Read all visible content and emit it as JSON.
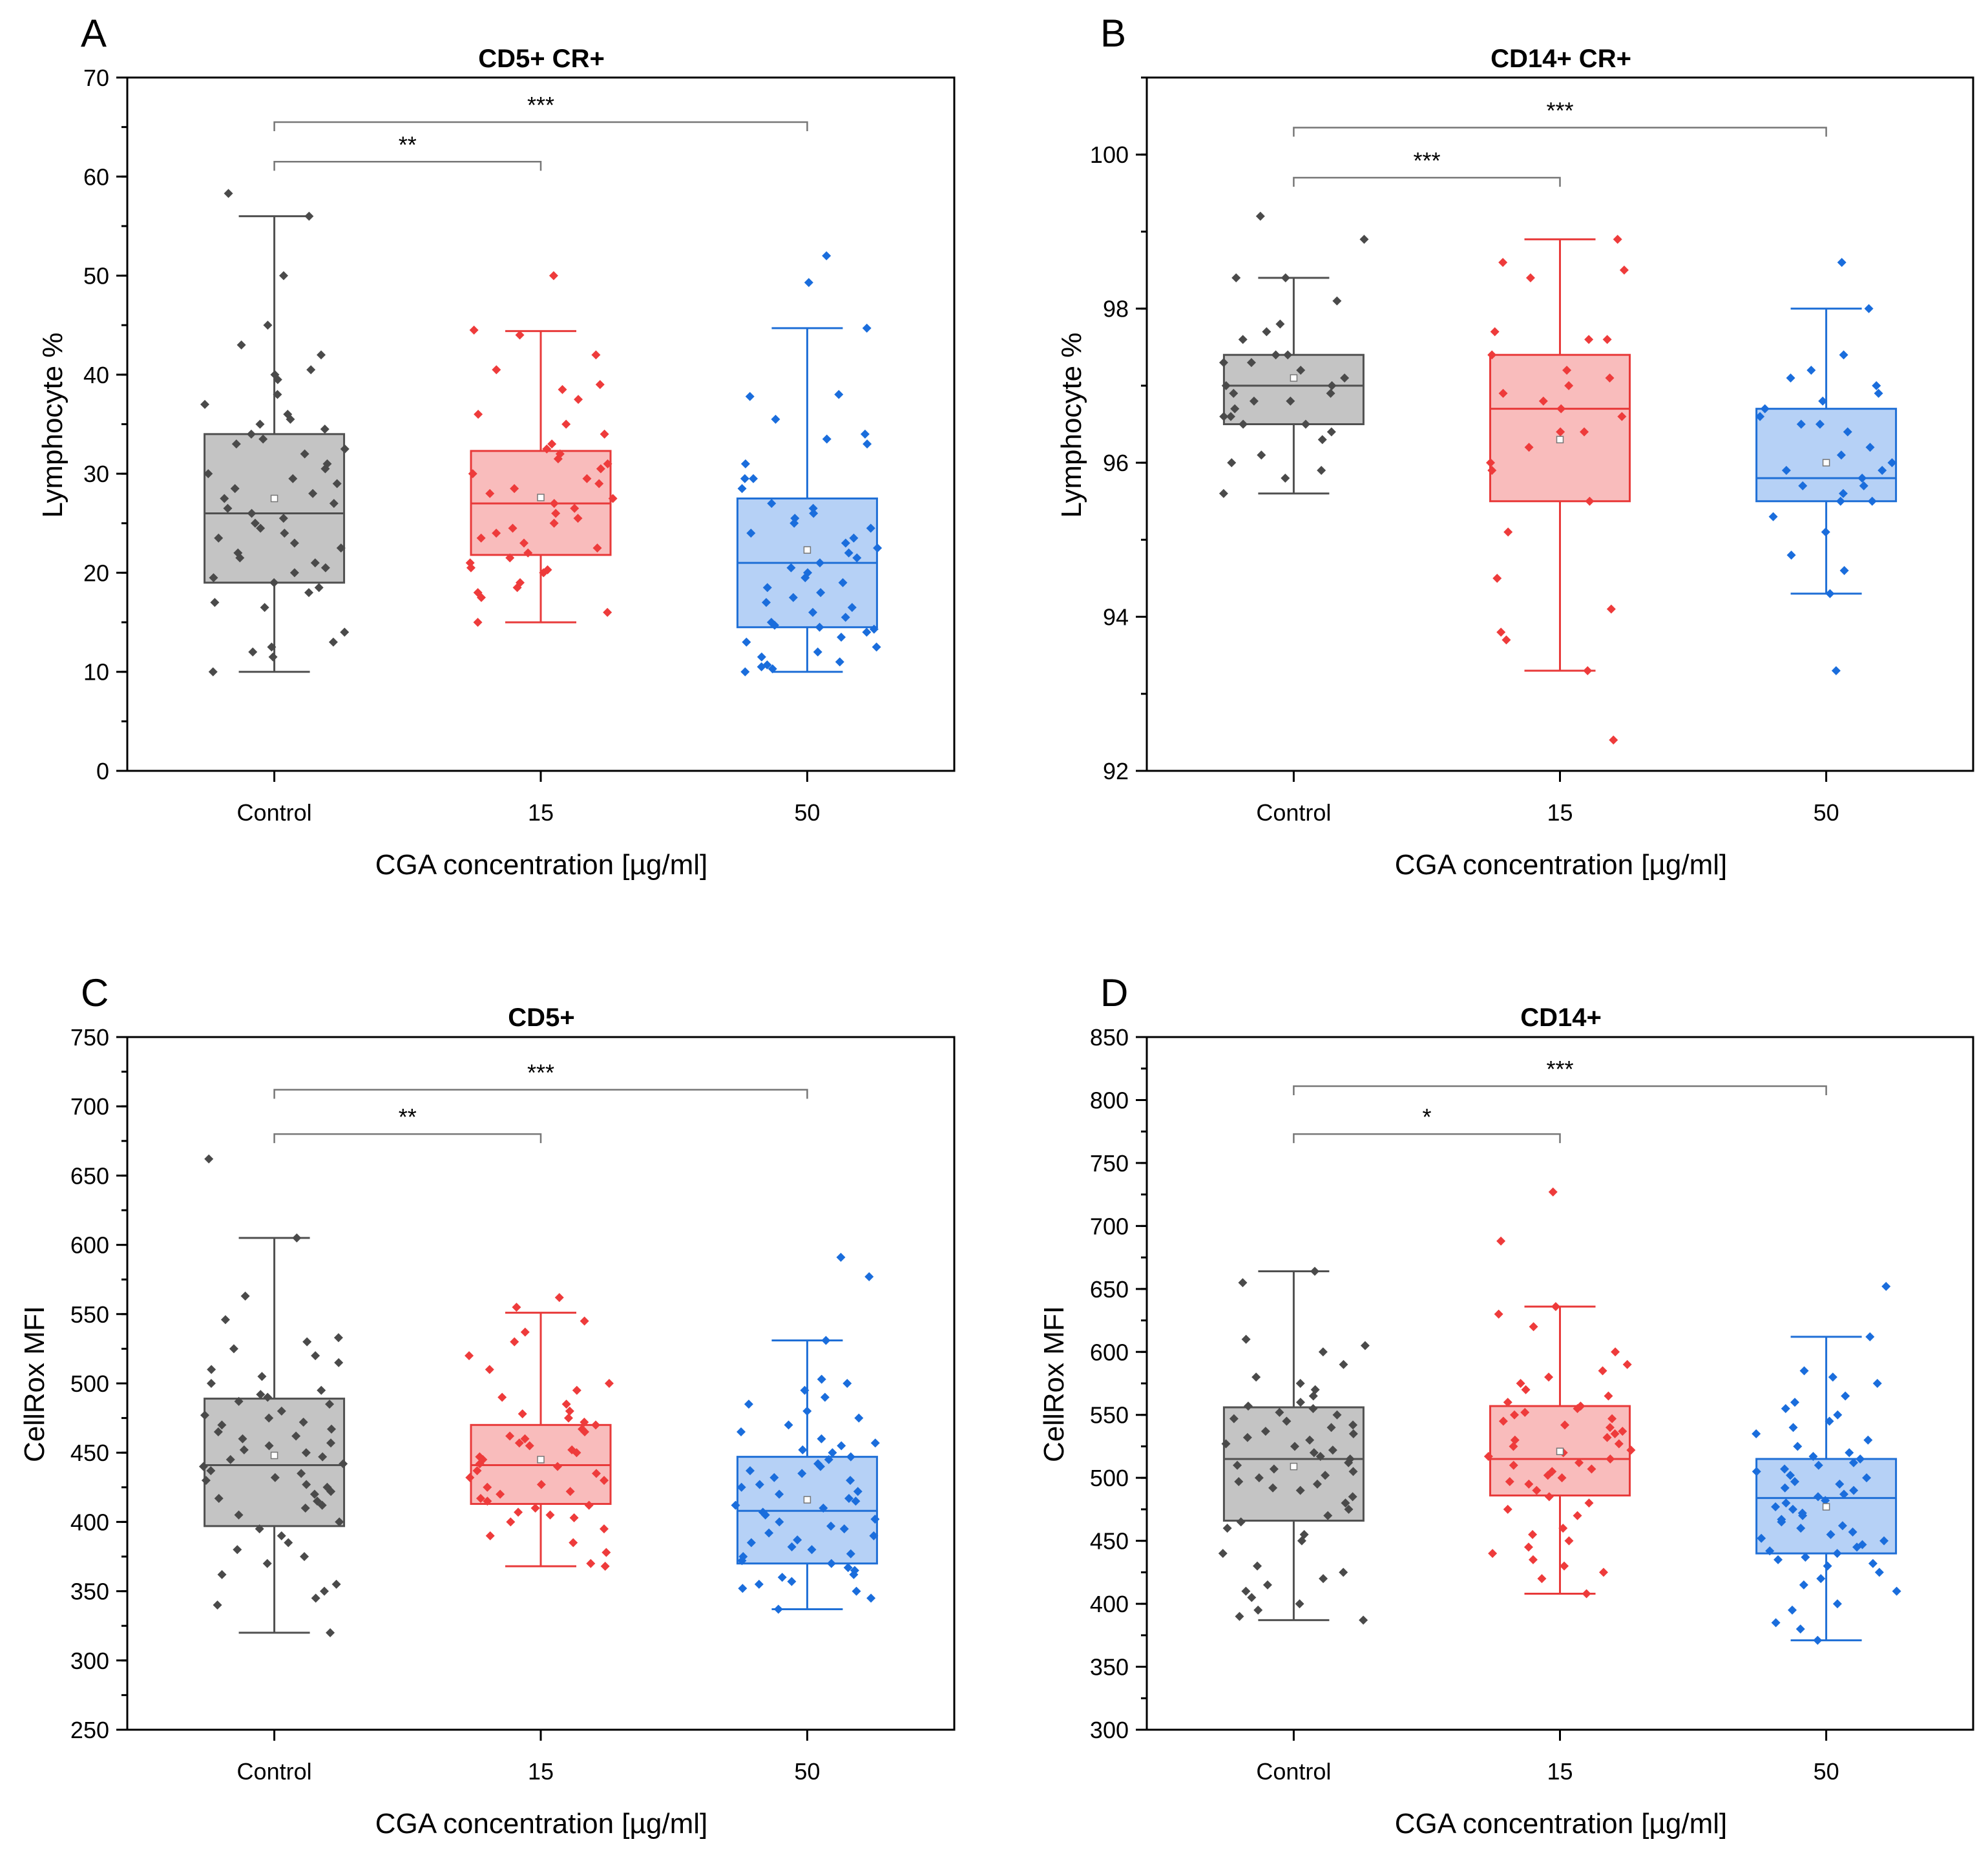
{
  "chart_data": [
    {
      "type": "box",
      "panel_letter": "A",
      "title": "CD5+ CR+",
      "xlabel": "CGA concentration [µg/ml]",
      "ylabel": "Lymphocyte %",
      "categories": [
        "Control",
        "15",
        "50"
      ],
      "ylim": [
        0,
        70
      ],
      "yticks": [
        0,
        10,
        20,
        30,
        40,
        50,
        60,
        70
      ],
      "yminor_step": 5,
      "colors": {
        "Control": {
          "fill": "#c4c4c4",
          "edge": "#505050",
          "point": "#4a4a4a"
        },
        "15": {
          "fill": "#f9bcbc",
          "edge": "#e83a3a",
          "point": "#ee3b3b"
        },
        "50": {
          "fill": "#b6d1f6",
          "edge": "#1f6fd6",
          "point": "#1a6ddc"
        }
      },
      "boxes": [
        {
          "q1": 19,
          "median": 26,
          "q3": 34,
          "whisker_low": 10,
          "whisker_high": 56,
          "mean": 27.5,
          "points": [
            58.3,
            56,
            50,
            45,
            43,
            42,
            40.5,
            40,
            39.5,
            38,
            37,
            36,
            35.5,
            35,
            34.5,
            34,
            33.5,
            33,
            32.5,
            32,
            31,
            30.5,
            30,
            29.5,
            29,
            28.5,
            28,
            27.5,
            27,
            26.5,
            26,
            25.5,
            25,
            24.5,
            24,
            23.5,
            23,
            22.5,
            22,
            21.5,
            21,
            20.5,
            20,
            19.5,
            19,
            18.5,
            18,
            17,
            16.5,
            14,
            13,
            12.5,
            12,
            11.5,
            10
          ]
        },
        {
          "q1": 21.8,
          "median": 27,
          "q3": 32.3,
          "whisker_low": 15,
          "whisker_high": 44.4,
          "mean": 27.6,
          "points": [
            50,
            44.5,
            44,
            42,
            40.5,
            39,
            38.5,
            37.5,
            36,
            35,
            34,
            33,
            32.5,
            32,
            31.5,
            31,
            30.5,
            30,
            29.5,
            29,
            28.5,
            28,
            27.5,
            27,
            26.5,
            26,
            25.5,
            25,
            24.5,
            24,
            23.5,
            23,
            22.5,
            22,
            21.5,
            21,
            20.5,
            20.3,
            20,
            19,
            18.5,
            18,
            17.5,
            16,
            15
          ]
        },
        {
          "q1": 14.5,
          "median": 21,
          "q3": 27.5,
          "whisker_low": 10,
          "whisker_high": 44.7,
          "mean": 22.3,
          "points": [
            52,
            49.3,
            44.7,
            38,
            37.8,
            35.5,
            34,
            33.5,
            33,
            31,
            29.5,
            29.5,
            28.5,
            27,
            26.5,
            26,
            25.5,
            25,
            24.5,
            24,
            23.5,
            23,
            22.5,
            22,
            21.5,
            21,
            20.5,
            20,
            19.5,
            19,
            18.5,
            18,
            17.5,
            17,
            16.5,
            16,
            15.5,
            15,
            14.7,
            14.5,
            14.3,
            14,
            13.5,
            13,
            12.5,
            12,
            11.5,
            11,
            10.7,
            10.5,
            10.3,
            10
          ]
        }
      ],
      "significance": [
        {
          "from": "Control",
          "to": "15",
          "label": "**",
          "y": 61.5
        },
        {
          "from": "Control",
          "to": "50",
          "label": "***",
          "y": 65.5
        }
      ]
    },
    {
      "type": "box",
      "panel_letter": "B",
      "title": "CD14+ CR+",
      "xlabel": "CGA concentration [µg/ml]",
      "ylabel": "Lymphocyte %",
      "categories": [
        "Control",
        "15",
        "50"
      ],
      "ylim": [
        92,
        101
      ],
      "yticks": [
        92,
        94,
        96,
        98,
        100
      ],
      "yminor_step": 1,
      "colors": {
        "Control": {
          "fill": "#c4c4c4",
          "edge": "#505050",
          "point": "#4a4a4a"
        },
        "15": {
          "fill": "#f9bcbc",
          "edge": "#e83a3a",
          "point": "#ee3b3b"
        },
        "50": {
          "fill": "#b6d1f6",
          "edge": "#1f6fd6",
          "point": "#1a6ddc"
        }
      },
      "boxes": [
        {
          "q1": 96.5,
          "median": 97,
          "q3": 97.4,
          "whisker_low": 95.6,
          "whisker_high": 98.4,
          "mean": 97.1,
          "points": [
            99.2,
            98.9,
            98.4,
            98.4,
            98.1,
            97.8,
            97.7,
            97.6,
            97.4,
            97.4,
            97.3,
            97.3,
            97.2,
            97.1,
            97,
            97,
            96.9,
            96.9,
            96.8,
            96.8,
            96.7,
            96.6,
            96.6,
            96.5,
            96.5,
            96.4,
            96.3,
            96.1,
            96,
            95.9,
            95.8,
            95.6
          ]
        },
        {
          "q1": 95.5,
          "median": 96.7,
          "q3": 97.4,
          "whisker_low": 93.3,
          "whisker_high": 98.9,
          "mean": 96.3,
          "points": [
            98.9,
            98.6,
            98.5,
            98.4,
            97.7,
            97.6,
            97.6,
            97.4,
            97.2,
            97.1,
            97,
            96.9,
            96.8,
            96.7,
            96.6,
            96.4,
            96.4,
            96.2,
            96,
            95.9,
            95.5,
            95.1,
            94.5,
            94.1,
            93.8,
            93.7,
            93.3,
            92.4
          ]
        },
        {
          "q1": 95.5,
          "median": 95.8,
          "q3": 96.7,
          "whisker_low": 94.3,
          "whisker_high": 98,
          "mean": 96,
          "points": [
            98.6,
            98,
            97.4,
            97.2,
            97.1,
            97,
            96.9,
            96.8,
            96.7,
            96.6,
            96.5,
            96.5,
            96.4,
            96.2,
            96.1,
            96,
            95.9,
            95.9,
            95.8,
            95.7,
            95.7,
            95.6,
            95.5,
            95.5,
            95.3,
            95.1,
            94.8,
            94.6,
            94.3,
            93.3
          ]
        }
      ],
      "significance": [
        {
          "from": "Control",
          "to": "15",
          "label": "***",
          "y": 99.7
        },
        {
          "from": "Control",
          "to": "50",
          "label": "***",
          "y": 100.35
        }
      ]
    },
    {
      "type": "box",
      "panel_letter": "C",
      "title": "CD5+",
      "xlabel": "CGA concentration [µg/ml]",
      "ylabel": "CellRox MFI",
      "categories": [
        "Control",
        "15",
        "50"
      ],
      "ylim": [
        250,
        750
      ],
      "yticks": [
        250,
        300,
        350,
        400,
        450,
        500,
        550,
        600,
        650,
        700,
        750
      ],
      "yminor_step": 25,
      "colors": {
        "Control": {
          "fill": "#c4c4c4",
          "edge": "#505050",
          "point": "#4a4a4a"
        },
        "15": {
          "fill": "#f9bcbc",
          "edge": "#e83a3a",
          "point": "#ee3b3b"
        },
        "50": {
          "fill": "#b6d1f6",
          "edge": "#1f6fd6",
          "point": "#1a6ddc"
        }
      },
      "boxes": [
        {
          "q1": 397,
          "median": 441,
          "q3": 489,
          "whisker_low": 320,
          "whisker_high": 605,
          "mean": 448,
          "points": [
            662,
            605,
            563,
            546,
            533,
            530,
            525,
            520,
            515,
            510,
            505,
            500,
            495,
            492,
            490,
            487,
            485,
            480,
            477,
            475,
            472,
            470,
            467,
            465,
            462,
            460,
            457,
            455,
            452,
            450,
            447,
            445,
            442,
            440,
            437,
            435,
            432,
            430,
            427,
            425,
            422,
            420,
            417,
            415,
            412,
            410,
            405,
            400,
            395,
            390,
            385,
            380,
            375,
            370,
            362,
            355,
            350,
            345,
            340,
            320
          ]
        },
        {
          "q1": 413,
          "median": 441,
          "q3": 470,
          "whisker_low": 368,
          "whisker_high": 551,
          "mean": 445,
          "points": [
            562,
            555,
            545,
            537,
            530,
            520,
            510,
            500,
            495,
            490,
            485,
            480,
            478,
            475,
            472,
            470,
            467,
            465,
            462,
            460,
            457,
            455,
            452,
            450,
            447,
            445,
            442,
            440,
            437,
            435,
            432,
            430,
            427,
            425,
            422,
            420,
            417,
            415,
            412,
            410,
            407,
            405,
            403,
            400,
            395,
            390,
            385,
            378,
            370,
            368
          ]
        },
        {
          "q1": 370,
          "median": 408,
          "q3": 447,
          "whisker_low": 337,
          "whisker_high": 531,
          "mean": 416,
          "points": [
            591,
            577,
            531,
            503,
            500,
            495,
            490,
            485,
            480,
            475,
            470,
            465,
            460,
            457,
            455,
            452,
            450,
            447,
            445,
            442,
            440,
            437,
            435,
            432,
            430,
            427,
            425,
            422,
            420,
            417,
            415,
            412,
            410,
            407,
            405,
            402,
            400,
            397,
            395,
            392,
            390,
            387,
            385,
            382,
            380,
            377,
            375,
            372,
            370,
            367,
            365,
            362,
            360,
            357,
            355,
            352,
            350,
            345,
            337
          ]
        }
      ],
      "significance": [
        {
          "from": "Control",
          "to": "15",
          "label": "**",
          "y": 680
        },
        {
          "from": "Control",
          "to": "50",
          "label": "***",
          "y": 712
        }
      ]
    },
    {
      "type": "box",
      "panel_letter": "D",
      "title": "CD14+",
      "xlabel": "CGA concentration [µg/ml]",
      "ylabel": "CellRox MFI",
      "categories": [
        "Control",
        "15",
        "50"
      ],
      "ylim": [
        300,
        850
      ],
      "yticks": [
        300,
        350,
        400,
        450,
        500,
        550,
        600,
        650,
        700,
        750,
        800,
        850
      ],
      "yminor_step": 25,
      "colors": {
        "Control": {
          "fill": "#c4c4c4",
          "edge": "#505050",
          "point": "#4a4a4a"
        },
        "15": {
          "fill": "#f9bcbc",
          "edge": "#e83a3a",
          "point": "#ee3b3b"
        },
        "50": {
          "fill": "#b6d1f6",
          "edge": "#1f6fd6",
          "point": "#1a6ddc"
        }
      },
      "boxes": [
        {
          "q1": 466,
          "median": 515,
          "q3": 556,
          "whisker_low": 387,
          "whisker_high": 664,
          "mean": 509,
          "points": [
            664,
            655,
            610,
            605,
            600,
            590,
            580,
            575,
            570,
            565,
            560,
            557,
            555,
            552,
            550,
            547,
            545,
            542,
            540,
            537,
            535,
            532,
            530,
            527,
            525,
            522,
            520,
            517,
            515,
            512,
            510,
            507,
            505,
            502,
            500,
            497,
            495,
            492,
            490,
            485,
            480,
            475,
            470,
            465,
            460,
            455,
            450,
            440,
            430,
            425,
            420,
            415,
            410,
            405,
            400,
            395,
            390,
            387
          ]
        },
        {
          "q1": 486,
          "median": 515,
          "q3": 557,
          "whisker_low": 408,
          "whisker_high": 636,
          "mean": 521,
          "points": [
            727,
            688,
            636,
            630,
            620,
            600,
            590,
            585,
            580,
            575,
            570,
            565,
            560,
            557,
            555,
            552,
            550,
            547,
            545,
            542,
            540,
            537,
            535,
            532,
            530,
            527,
            525,
            522,
            520,
            517,
            515,
            512,
            510,
            507,
            505,
            502,
            500,
            497,
            495,
            490,
            485,
            480,
            475,
            470,
            460,
            455,
            450,
            445,
            440,
            435,
            430,
            425,
            420,
            408
          ]
        },
        {
          "q1": 440,
          "median": 484,
          "q3": 515,
          "whisker_low": 371,
          "whisker_high": 612,
          "mean": 477,
          "points": [
            652,
            612,
            585,
            580,
            575,
            565,
            560,
            555,
            550,
            545,
            540,
            535,
            530,
            525,
            520,
            517,
            515,
            512,
            510,
            507,
            505,
            502,
            500,
            497,
            495,
            492,
            490,
            487,
            485,
            482,
            480,
            477,
            475,
            472,
            470,
            467,
            465,
            462,
            460,
            457,
            455,
            452,
            450,
            447,
            445,
            442,
            440,
            437,
            435,
            432,
            430,
            425,
            420,
            415,
            410,
            400,
            395,
            385,
            380,
            371
          ]
        }
      ],
      "significance": [
        {
          "from": "Control",
          "to": "15",
          "label": "*",
          "y": 773
        },
        {
          "from": "Control",
          "to": "50",
          "label": "***",
          "y": 811
        }
      ]
    }
  ]
}
